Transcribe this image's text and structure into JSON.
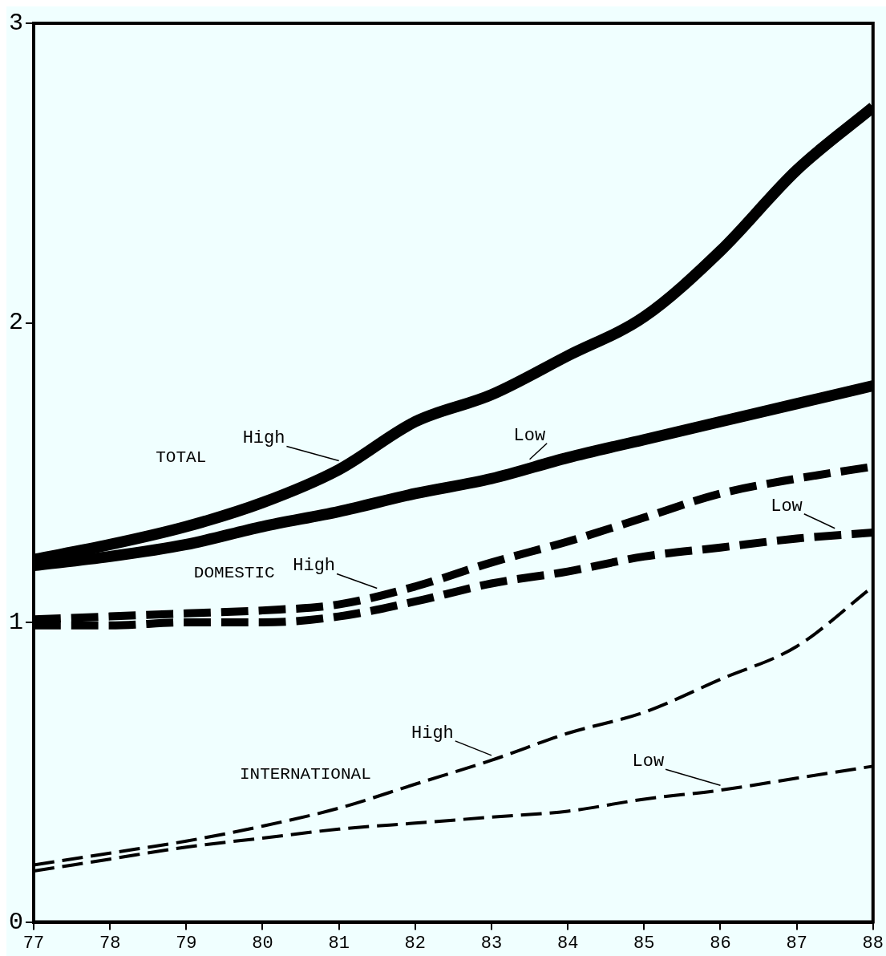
{
  "chart_data": {
    "type": "line",
    "x": [
      77,
      78,
      79,
      80,
      81,
      82,
      83,
      84,
      85,
      86,
      87,
      88
    ],
    "xlim": [
      77,
      88
    ],
    "xticks": [
      77,
      78,
      79,
      80,
      81,
      82,
      83,
      84,
      85,
      86,
      87,
      88
    ],
    "ylim": [
      0,
      3
    ],
    "yticks": [
      0,
      1,
      2,
      3
    ],
    "grid": false,
    "legend": false,
    "marker": "none",
    "series": [
      {
        "name": "High",
        "color": "#000000",
        "line_style": "solid",
        "values": [
          1.21,
          1.26,
          1.32,
          1.4,
          1.51,
          1.67,
          1.76,
          1.89,
          2.02,
          2.24,
          2.51,
          2.72
        ]
      },
      {
        "name": "Low",
        "color": "#000000",
        "line_style": "solid",
        "values": [
          1.19,
          1.22,
          1.26,
          1.32,
          1.37,
          1.43,
          1.48,
          1.55,
          1.61,
          1.67,
          1.73,
          1.79
        ]
      },
      {
        "name": "High",
        "color": "#000000",
        "line_style": "dashed",
        "values": [
          1.01,
          1.02,
          1.03,
          1.04,
          1.06,
          1.12,
          1.2,
          1.27,
          1.35,
          1.43,
          1.48,
          1.52
        ]
      },
      {
        "name": "Low",
        "color": "#000000",
        "line_style": "dashed",
        "values": [
          0.99,
          0.99,
          1.0,
          1.0,
          1.02,
          1.07,
          1.13,
          1.17,
          1.22,
          1.25,
          1.28,
          1.3
        ]
      },
      {
        "name": "High",
        "color": "#000000",
        "line_style": "dashed",
        "values": [
          0.19,
          0.23,
          0.27,
          0.32,
          0.38,
          0.46,
          0.54,
          0.63,
          0.7,
          0.81,
          0.92,
          1.12
        ]
      },
      {
        "name": "Low",
        "color": "#000000",
        "line_style": "dashed",
        "values": [
          0.17,
          0.21,
          0.25,
          0.28,
          0.31,
          0.33,
          0.35,
          0.37,
          0.41,
          0.44,
          0.48,
          0.52
        ]
      }
    ],
    "annotations": [
      "TOTAL",
      "DOMESTIC",
      "INTERNATIONAL"
    ]
  }
}
